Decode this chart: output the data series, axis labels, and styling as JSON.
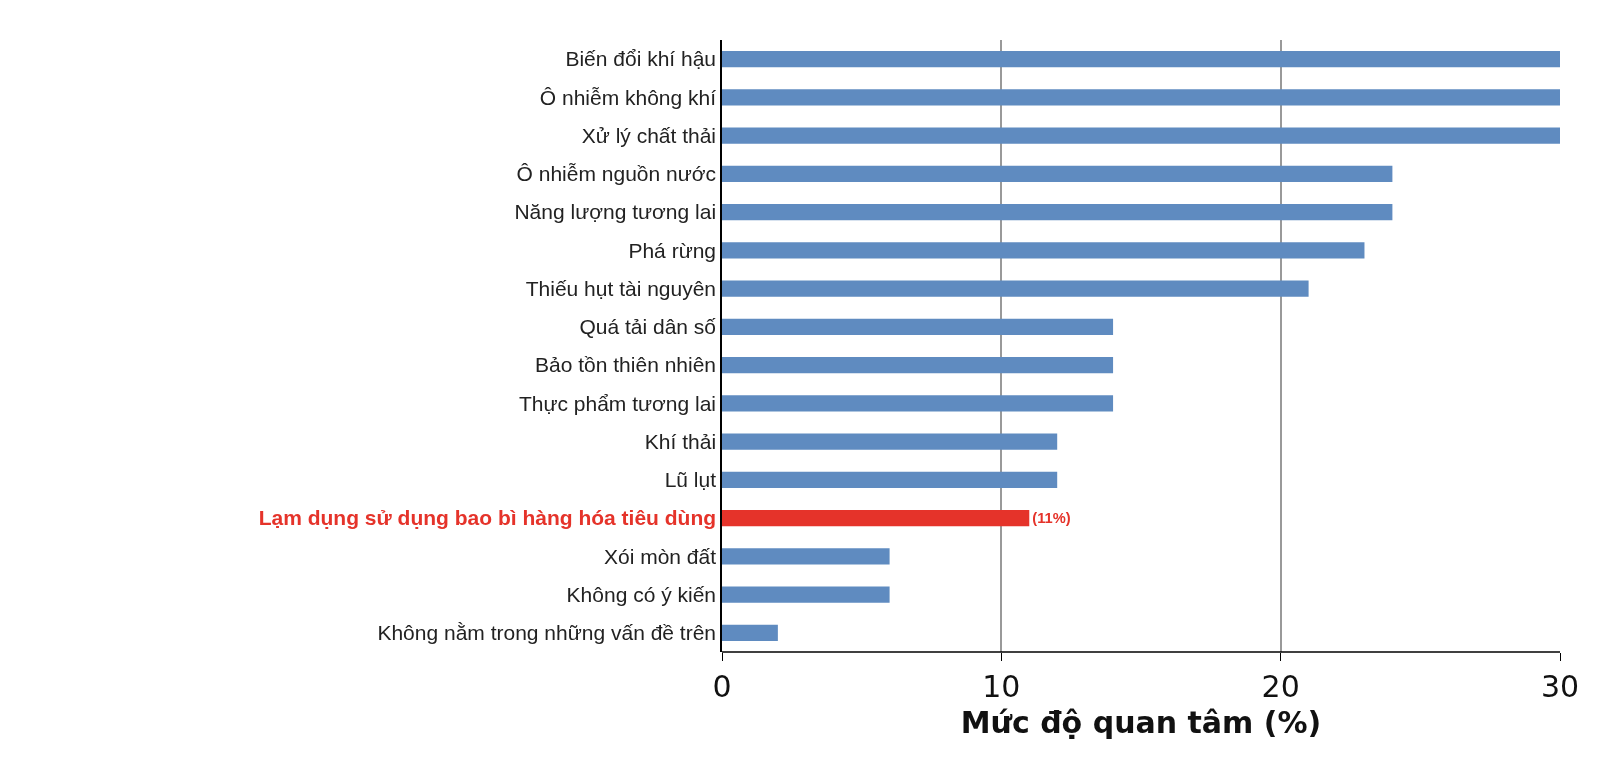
{
  "chart_data": {
    "type": "bar",
    "orientation": "horizontal",
    "xlabel": "Mức độ quan tâm (%)",
    "categories": [
      "Biến đổi khí hậu",
      "Ô nhiễm không khí",
      "Xử lý chất thải",
      "Ô nhiễm nguồn nước",
      "Năng lượng tương lai",
      "Phá rừng",
      "Thiếu hụt tài nguyên",
      "Quá tải dân số",
      "Bảo tồn thiên nhiên",
      "Thực phẩm tương lai",
      "Khí thải",
      "Lũ lụt",
      "Lạm dụng sử dụng bao bì hàng hóa tiêu dùng",
      "Xói mòn đất",
      "Không có ý kiến",
      "Không nằm trong những vấn đề trên"
    ],
    "values": [
      30,
      30,
      30,
      24,
      24,
      23,
      21,
      14,
      14,
      14,
      12,
      12,
      11,
      6,
      6,
      2
    ],
    "colors": [
      "#5f8bc0",
      "#5f8bc0",
      "#5f8bc0",
      "#5f8bc0",
      "#5f8bc0",
      "#5f8bc0",
      "#5f8bc0",
      "#5f8bc0",
      "#5f8bc0",
      "#5f8bc0",
      "#5f8bc0",
      "#5f8bc0",
      "#e5332a",
      "#5f8bc0",
      "#5f8bc0",
      "#5f8bc0"
    ],
    "value_labels": [
      null,
      null,
      null,
      null,
      null,
      null,
      null,
      null,
      null,
      null,
      null,
      null,
      "(11%)",
      null,
      null,
      null
    ],
    "xlim": [
      0,
      30
    ],
    "xticks": [
      0,
      10,
      20,
      30
    ],
    "grid": "x",
    "legend": false
  }
}
